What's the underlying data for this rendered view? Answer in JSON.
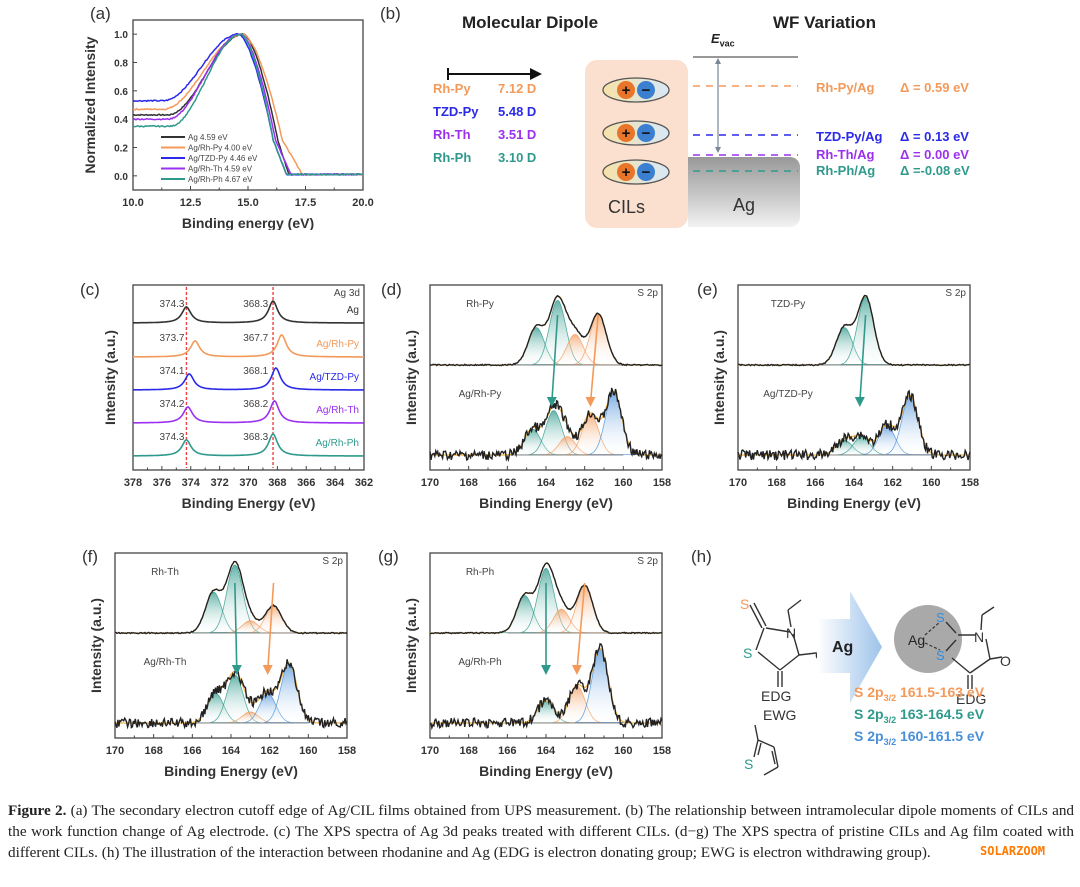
{
  "colors": {
    "ag": "#333333",
    "rh_py": "#f39a5b",
    "tzd_py": "#2a2ae8",
    "rh_th": "#9b30f0",
    "rh_ph": "#2f9a8c",
    "blue_fit": "#4a90d9",
    "red_dash": "#f04040"
  },
  "panel_labels": {
    "a": "(a)",
    "b": "(b)",
    "c": "(c)",
    "d": "(d)",
    "e": "(e)",
    "f": "(f)",
    "g": "(g)",
    "h": "(h)"
  },
  "chart_data": [
    {
      "id": "a",
      "type": "line",
      "title": "",
      "xlabel": "Binding energy (eV)",
      "ylabel": "Normalized Intensity",
      "xlim": [
        10.0,
        20.0
      ],
      "ylim": [
        -0.1,
        1.1
      ],
      "xticks": [
        "10.0",
        "12.5",
        "15.0",
        "17.5",
        "20.0"
      ],
      "yticks": [
        "0.0",
        "0.2",
        "0.4",
        "0.6",
        "0.8",
        "1.0"
      ],
      "legend_position": "lower-left",
      "series": [
        {
          "name": "Ag 4.59 eV",
          "color_key": "ag",
          "baseline": 0.43,
          "rise_start": 11.5,
          "peak_x": 14.8,
          "cut_mid": 16.3,
          "cut_end": 16.8
        },
        {
          "name": "Ag/Rh-Py 4.00 eV",
          "color_key": "rh_py",
          "baseline": 0.47,
          "rise_start": 11.3,
          "peak_x": 14.8,
          "cut_mid": 16.5,
          "cut_end": 17.4
        },
        {
          "name": "Ag/TZD-Py 4.46 eV",
          "color_key": "tzd_py",
          "baseline": 0.53,
          "rise_start": 11.3,
          "peak_x": 14.6,
          "cut_mid": 16.1,
          "cut_end": 16.7
        },
        {
          "name": "Ag/Rh-Th 4.59 eV",
          "color_key": "rh_th",
          "baseline": 0.4,
          "rise_start": 11.5,
          "peak_x": 14.7,
          "cut_mid": 16.2,
          "cut_end": 16.9
        },
        {
          "name": "Ag/Rh-Ph 4.67 eV",
          "color_key": "rh_ph",
          "baseline": 0.35,
          "rise_start": 11.6,
          "peak_x": 14.7,
          "cut_mid": 16.1,
          "cut_end": 16.7
        }
      ]
    },
    {
      "id": "c",
      "type": "line",
      "title": "Ag 3d",
      "xlabel": "Binding Energy (eV)",
      "ylabel": "Intensity (a.u.)",
      "xlim": [
        378,
        362
      ],
      "xticks": [
        "378",
        "376",
        "374",
        "372",
        "370",
        "368",
        "366",
        "364",
        "362"
      ],
      "reference_lines": [
        374.3,
        368.3
      ],
      "series": [
        {
          "name": "Ag",
          "color_key": "ag",
          "peaks": [
            374.3,
            368.3
          ],
          "labels": [
            "374.3",
            "368.3"
          ]
        },
        {
          "name": "Ag/Rh-Py",
          "color_key": "rh_py",
          "peaks": [
            373.7,
            367.7
          ],
          "labels": [
            "373.7",
            "367.7"
          ]
        },
        {
          "name": "Ag/TZD-Py",
          "color_key": "tzd_py",
          "peaks": [
            374.1,
            368.1
          ],
          "labels": [
            "374.1",
            "368.1"
          ]
        },
        {
          "name": "Ag/Rh-Th",
          "color_key": "rh_th",
          "peaks": [
            374.2,
            368.2
          ],
          "labels": [
            "374.2",
            "368.2"
          ]
        },
        {
          "name": "Ag/Rh-Ph",
          "color_key": "rh_ph",
          "peaks": [
            374.3,
            368.3
          ],
          "labels": [
            "374.3",
            "368.3"
          ]
        }
      ]
    },
    {
      "id": "d",
      "type": "line",
      "title": "S 2p",
      "xlabel": "Binding Energy (eV)",
      "ylabel": "Intensity (a.u.)",
      "xlim": [
        170,
        158
      ],
      "xticks": [
        "170",
        "168",
        "166",
        "164",
        "162",
        "160",
        "158"
      ],
      "top": {
        "name": "Rh-Py",
        "components": [
          {
            "c": 164.5,
            "h": 0.55,
            "col": "rh_ph"
          },
          {
            "c": 163.4,
            "h": 0.95,
            "col": "rh_ph"
          },
          {
            "c": 162.5,
            "h": 0.45,
            "col": "rh_py"
          },
          {
            "c": 161.3,
            "h": 0.75,
            "col": "rh_py"
          }
        ]
      },
      "bottom": {
        "name": "Ag/Rh-Py",
        "components": [
          {
            "c": 164.7,
            "h": 0.35,
            "col": "rh_ph"
          },
          {
            "c": 163.6,
            "h": 0.6,
            "col": "rh_ph"
          },
          {
            "c": 162.9,
            "h": 0.25,
            "col": "rh_py"
          },
          {
            "c": 161.7,
            "h": 0.55,
            "col": "rh_py"
          },
          {
            "c": 160.5,
            "h": 0.85,
            "col": "blue_fit"
          }
        ]
      },
      "arrows": [
        {
          "from": 163.4,
          "to": 163.7,
          "col": "rh_ph"
        },
        {
          "from": 161.3,
          "to": 161.7,
          "col": "rh_py"
        }
      ]
    },
    {
      "id": "e",
      "type": "line",
      "title": "S 2p",
      "xlabel": "Binding Energy (eV)",
      "ylabel": "Intensity (a.u.)",
      "xlim": [
        170,
        158
      ],
      "xticks": [
        "170",
        "168",
        "166",
        "164",
        "162",
        "160",
        "158"
      ],
      "top": {
        "name": "TZD-Py",
        "components": [
          {
            "c": 164.5,
            "h": 0.55,
            "col": "rh_ph"
          },
          {
            "c": 163.4,
            "h": 1.0,
            "col": "rh_ph"
          }
        ]
      },
      "bottom": {
        "name": "Ag/TZD-Py",
        "components": [
          {
            "c": 164.5,
            "h": 0.2,
            "col": "rh_ph"
          },
          {
            "c": 163.6,
            "h": 0.25,
            "col": "rh_ph"
          },
          {
            "c": 162.3,
            "h": 0.4,
            "col": "blue_fit"
          },
          {
            "c": 161.1,
            "h": 0.8,
            "col": "blue_fit"
          }
        ]
      },
      "arrows": [
        {
          "from": 163.4,
          "to": 163.7,
          "col": "rh_ph"
        }
      ]
    },
    {
      "id": "f",
      "type": "line",
      "title": "S 2p",
      "xlabel": "Binding Energy (eV)",
      "ylabel": "Intensity (a.u.)",
      "xlim": [
        170,
        158
      ],
      "xticks": [
        "170",
        "168",
        "166",
        "164",
        "162",
        "160",
        "158"
      ],
      "top": {
        "name": "Rh-Th",
        "components": [
          {
            "c": 164.9,
            "h": 0.6,
            "col": "rh_ph"
          },
          {
            "c": 163.8,
            "h": 1.0,
            "col": "rh_ph"
          },
          {
            "c": 163.0,
            "h": 0.18,
            "col": "rh_py"
          },
          {
            "c": 161.8,
            "h": 0.4,
            "col": "rh_py"
          }
        ]
      },
      "bottom": {
        "name": "Ag/Rh-Th",
        "components": [
          {
            "c": 164.8,
            "h": 0.4,
            "col": "rh_ph"
          },
          {
            "c": 163.8,
            "h": 0.65,
            "col": "rh_ph"
          },
          {
            "c": 163.0,
            "h": 0.15,
            "col": "rh_py"
          },
          {
            "c": 162.1,
            "h": 0.4,
            "col": "blue_fit"
          },
          {
            "c": 161.0,
            "h": 0.8,
            "col": "blue_fit"
          }
        ]
      },
      "arrows": [
        {
          "from": 163.8,
          "to": 163.7,
          "col": "rh_ph"
        },
        {
          "from": 161.8,
          "to": 162.1,
          "col": "rh_py"
        }
      ]
    },
    {
      "id": "g",
      "type": "line",
      "title": "S 2p",
      "xlabel": "Binding Energy (eV)",
      "ylabel": "Intensity (a.u.)",
      "xlim": [
        170,
        158
      ],
      "xticks": [
        "170",
        "168",
        "166",
        "164",
        "162",
        "160",
        "158"
      ],
      "top": {
        "name": "Rh-Ph",
        "components": [
          {
            "c": 165.1,
            "h": 0.55,
            "col": "rh_ph"
          },
          {
            "c": 164.0,
            "h": 0.95,
            "col": "rh_ph"
          },
          {
            "c": 163.2,
            "h": 0.35,
            "col": "rh_py"
          },
          {
            "c": 162.0,
            "h": 0.7,
            "col": "rh_py"
          }
        ]
      },
      "bottom": {
        "name": "Ag/Rh-Ph",
        "components": [
          {
            "c": 164.0,
            "h": 0.3,
            "col": "rh_ph"
          },
          {
            "c": 162.4,
            "h": 0.5,
            "col": "rh_py"
          },
          {
            "c": 161.2,
            "h": 1.0,
            "col": "blue_fit"
          }
        ]
      },
      "arrows": [
        {
          "from": 164.0,
          "to": 164.0,
          "col": "rh_ph"
        },
        {
          "from": 162.0,
          "to": 162.4,
          "col": "rh_py"
        }
      ]
    }
  ],
  "panel_b": {
    "molecular_dipole_title": "Molecular Dipole",
    "wf_variation_title": "WF Variation",
    "evac_label": "E",
    "evac_sub": "vac",
    "cils_label": "CILs",
    "ag_label": "Ag",
    "plus": "+",
    "minus": "−",
    "dipoles": [
      {
        "name": "Rh-Py",
        "value": "7.12 D",
        "color_key": "rh_py"
      },
      {
        "name": "TZD-Py",
        "value": "5.48 D",
        "color_key": "tzd_py"
      },
      {
        "name": "Rh-Th",
        "value": "3.51 D",
        "color_key": "rh_th"
      },
      {
        "name": "Rh-Ph",
        "value": "3.10 D",
        "color_key": "rh_ph"
      }
    ],
    "wf_levels": [
      {
        "name": "Rh-Py/Ag",
        "delta": "Δ = 0.59 eV",
        "color_key": "rh_py"
      },
      {
        "name": "TZD-Py/Ag",
        "delta": "Δ = 0.13 eV",
        "color_key": "tzd_py"
      },
      {
        "name": "Rh-Th/Ag",
        "delta": "Δ = 0.00 eV",
        "color_key": "rh_th"
      },
      {
        "name": "Rh-Ph/Ag",
        "delta": "Δ =-0.08 eV",
        "color_key": "rh_ph"
      }
    ]
  },
  "panel_h": {
    "reagent_label": "Ag",
    "edg": "EDG",
    "ewg": "EWG",
    "s": "S",
    "n": "N",
    "o": "O",
    "ag_atom": "Ag",
    "ranges": [
      {
        "prefix": "S 2p",
        "sub": "3/2",
        "range": "161.5-163 eV",
        "color_key": "rh_py"
      },
      {
        "prefix": "S 2p",
        "sub": "3/2",
        "range": "163-164.5 eV",
        "color_key": "rh_ph"
      },
      {
        "prefix": "S 2p",
        "sub": "3/2",
        "range": "160-161.5 eV",
        "color_key": "blue_fit"
      }
    ]
  },
  "caption": {
    "figure_label": "Figure 2.",
    "text": " (a) The secondary electron cutoff edge of Ag/CIL films obtained from UPS measurement. (b) The relationship between intramolecular dipole moments of CILs and the work function change of Ag electrode. (c) The XPS spectra of Ag 3d peaks treated with different CILs. (d−g) The XPS spectra of pristine CILs and Ag film coated with different CILs. (h) The illustration of the interaction between rhodanine and Ag (EDG is electron donating group; EWG is electron withdrawing group)."
  },
  "watermark": "SOLARZOOM"
}
